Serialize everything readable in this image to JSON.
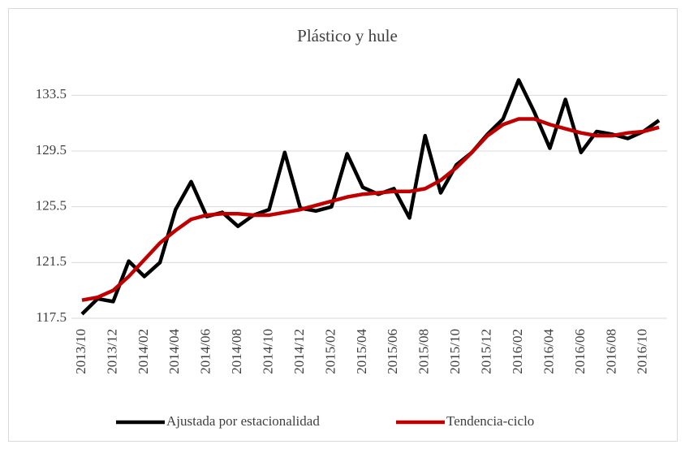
{
  "chart_data": {
    "type": "line",
    "title": "Plástico y hule",
    "categories": [
      "2013/10",
      null,
      "2013/12",
      null,
      "2014/02",
      null,
      "2014/04",
      null,
      "2014/06",
      null,
      "2014/08",
      null,
      "2014/10",
      null,
      "2014/12",
      null,
      "2015/02",
      null,
      "2015/04",
      null,
      "2015/06",
      null,
      "2015/08",
      null,
      "2015/10",
      null,
      "2015/12",
      null,
      "2016/02",
      null,
      "2016/04",
      null,
      "2016/06",
      null,
      "2016/08",
      null,
      "2016/10",
      null
    ],
    "series": [
      {
        "name": "Ajustada por estacionalidad",
        "color": "#000000",
        "values": [
          117.8,
          118.9,
          118.7,
          121.6,
          120.5,
          121.5,
          125.3,
          127.3,
          124.8,
          125.1,
          124.1,
          124.9,
          125.3,
          129.4,
          125.4,
          125.2,
          125.5,
          129.3,
          126.9,
          126.4,
          126.8,
          124.7,
          130.6,
          126.5,
          128.5,
          129.4,
          130.7,
          131.8,
          134.6,
          132.3,
          129.7,
          133.2,
          129.4,
          130.9,
          130.7,
          130.4,
          130.9,
          131.7
        ]
      },
      {
        "name": "Tendencia-ciclo",
        "color": "#c00000",
        "values": [
          118.8,
          119.0,
          119.5,
          120.5,
          121.7,
          122.9,
          123.8,
          124.6,
          124.9,
          125.0,
          125.0,
          124.9,
          124.9,
          125.1,
          125.3,
          125.6,
          125.9,
          126.2,
          126.4,
          126.5,
          126.6,
          126.6,
          126.8,
          127.4,
          128.3,
          129.4,
          130.6,
          131.4,
          131.8,
          131.8,
          131.4,
          131.1,
          130.8,
          130.6,
          130.6,
          130.8,
          130.9,
          131.2
        ]
      }
    ],
    "ylim": [
      117.5,
      135.5
    ],
    "yticks": [
      117.5,
      121.5,
      125.5,
      129.5,
      133.5
    ],
    "grid": true,
    "legend": "bottom"
  }
}
